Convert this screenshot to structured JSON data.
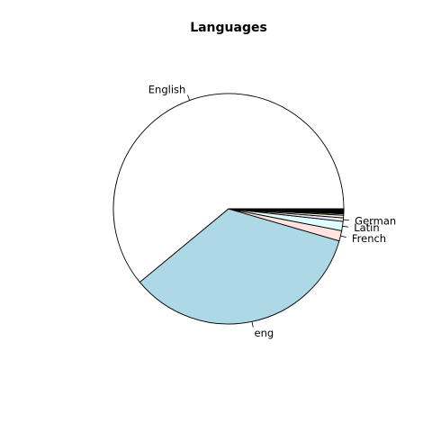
{
  "chart_data": {
    "type": "pie",
    "title": "Languages",
    "start_angle_deg": 0,
    "direction": "counterclockwise",
    "slices": [
      {
        "label": "English",
        "value": 61.0,
        "color": "#ffffff"
      },
      {
        "label": "eng",
        "value": 34.5,
        "color": "#add8e6"
      },
      {
        "label": "French",
        "value": 1.45,
        "color": "#ffe4e1"
      },
      {
        "label": "Latin",
        "value": 1.3,
        "color": "#e0ffff"
      },
      {
        "label": "German",
        "value": 0.5,
        "color": "#e6e6fa"
      },
      {
        "label": "",
        "value": 0.35,
        "color": "#fff8dc"
      },
      {
        "label": "",
        "value": 0.2,
        "color": "#f0fff0"
      },
      {
        "label": "",
        "value": 0.15,
        "color": "#000000"
      },
      {
        "label": "",
        "value": 0.15,
        "color": "#000000"
      },
      {
        "label": "",
        "value": 0.15,
        "color": "#000000"
      },
      {
        "label": "",
        "value": 0.13,
        "color": "#000000"
      },
      {
        "label": "",
        "value": 0.12,
        "color": "#000000"
      }
    ]
  }
}
